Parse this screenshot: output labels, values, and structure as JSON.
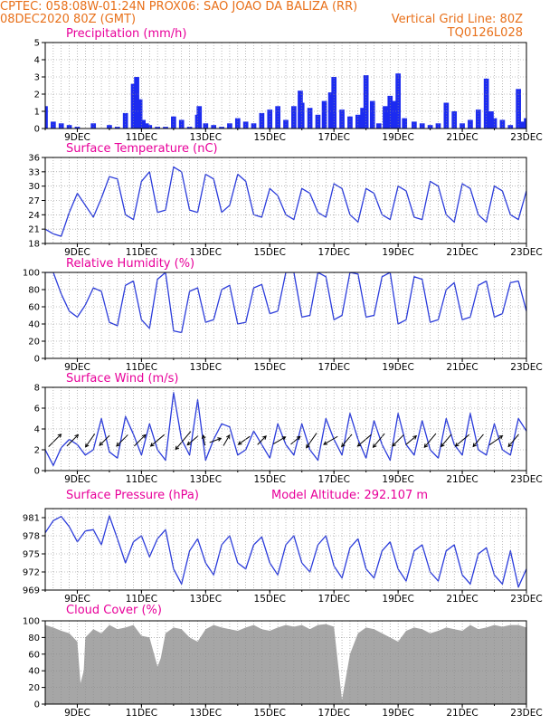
{
  "header": {
    "left_line1": "CPTEC:   058:08W-01:24N   PROX06: SAO JOAO DA BALIZA (RR)",
    "left_line2": "08DEC2020 80Z (GMT)",
    "right_line2": "Vertical Grid Line: 80Z",
    "right_line3": "TQ0126L028"
  },
  "colors": {
    "header_text": "#e8701a",
    "panel_title": "#e8009a",
    "series_line": "#2a3bdc",
    "precip_bar": "#1c2bf0",
    "cloud_fill": "#a6a6a6",
    "grid": "#8c8c8c"
  },
  "x_ticks": [
    "9DEC",
    "11DEC",
    "13DEC",
    "15DEC",
    "17DEC",
    "19DEC",
    "21DEC",
    "23DEC"
  ],
  "chart_data": [
    {
      "type": "bar",
      "title": "Precipitation (mm/h)",
      "x_range": [
        8.0,
        23.0
      ],
      "ylim": [
        0,
        5
      ],
      "y_ticks": [
        0,
        1,
        2,
        3,
        4,
        5
      ],
      "x": [
        8.0,
        8.25,
        8.5,
        8.75,
        9.0,
        9.5,
        10.0,
        10.25,
        10.5,
        10.75,
        10.85,
        10.95,
        11.05,
        11.15,
        11.25,
        11.5,
        11.75,
        12.0,
        12.25,
        12.5,
        12.75,
        12.8,
        13.0,
        13.25,
        13.5,
        13.75,
        14.0,
        14.25,
        14.5,
        14.75,
        15.0,
        15.25,
        15.5,
        15.75,
        15.95,
        16.0,
        16.25,
        16.5,
        16.7,
        16.9,
        17.0,
        17.25,
        17.5,
        17.75,
        17.9,
        18.0,
        18.2,
        18.4,
        18.6,
        18.75,
        18.9,
        19.0,
        19.2,
        19.5,
        19.75,
        20.0,
        20.25,
        20.5,
        20.75,
        21.0,
        21.25,
        21.5,
        21.75,
        21.9,
        22.0,
        22.25,
        22.5,
        22.75,
        22.9,
        23.0
      ],
      "values": [
        1.3,
        0.4,
        0.3,
        0.2,
        0.1,
        0.3,
        0.2,
        0.1,
        0.9,
        2.6,
        3.0,
        1.7,
        0.5,
        0.3,
        0.2,
        0.1,
        0.1,
        0.7,
        0.5,
        0.1,
        0.8,
        1.3,
        0.3,
        0.2,
        0.1,
        0.3,
        0.6,
        0.4,
        0.3,
        0.9,
        1.1,
        1.3,
        0.5,
        1.3,
        2.2,
        1.5,
        1.2,
        0.8,
        1.6,
        2.1,
        3.0,
        1.1,
        0.7,
        0.8,
        1.2,
        3.1,
        1.6,
        0.3,
        1.3,
        1.9,
        1.6,
        3.2,
        0.6,
        0.4,
        0.3,
        0.2,
        0.3,
        1.5,
        1.0,
        0.3,
        0.5,
        1.1,
        2.9,
        1.0,
        0.6,
        0.5,
        0.2,
        2.3,
        0.4,
        0.6
      ]
    },
    {
      "type": "line",
      "title": "Surface Temperature (nC)",
      "x_range": [
        8.0,
        23.0
      ],
      "ylim": [
        18,
        36
      ],
      "y_ticks": [
        18,
        21,
        24,
        27,
        30,
        33,
        36
      ],
      "x": [
        8.0,
        8.25,
        8.5,
        8.75,
        9.0,
        9.25,
        9.5,
        9.75,
        10.0,
        10.25,
        10.5,
        10.75,
        11.0,
        11.25,
        11.5,
        11.75,
        12.0,
        12.25,
        12.5,
        12.75,
        13.0,
        13.25,
        13.5,
        13.75,
        14.0,
        14.25,
        14.5,
        14.75,
        15.0,
        15.25,
        15.5,
        15.75,
        16.0,
        16.25,
        16.5,
        16.75,
        17.0,
        17.25,
        17.5,
        17.75,
        18.0,
        18.25,
        18.5,
        18.75,
        19.0,
        19.25,
        19.5,
        19.75,
        20.0,
        20.25,
        20.5,
        20.75,
        21.0,
        21.25,
        21.5,
        21.75,
        22.0,
        22.25,
        22.5,
        22.75,
        23.0
      ],
      "values": [
        21.0,
        20.0,
        19.5,
        24.5,
        28.5,
        26.0,
        23.5,
        27.5,
        32.0,
        31.5,
        24.0,
        23.0,
        31.0,
        33.0,
        24.5,
        25.0,
        34.0,
        33.0,
        25.0,
        24.5,
        32.5,
        31.5,
        24.5,
        26.0,
        32.5,
        31.0,
        24.0,
        23.5,
        29.5,
        28.0,
        24.0,
        23.0,
        29.5,
        28.5,
        24.5,
        23.5,
        30.5,
        29.5,
        24.0,
        22.5,
        29.5,
        28.5,
        24.0,
        23.0,
        30.0,
        29.0,
        23.5,
        23.0,
        31.0,
        30.0,
        24.0,
        22.5,
        30.5,
        29.5,
        24.0,
        22.5,
        30.0,
        29.0,
        24.0,
        23.0,
        29.0
      ]
    },
    {
      "type": "line",
      "title": "Relative Humidity (%)",
      "x_range": [
        8.0,
        23.0
      ],
      "ylim": [
        0,
        100
      ],
      "y_ticks": [
        0,
        20,
        40,
        60,
        80,
        100
      ],
      "x": [
        8.0,
        8.25,
        8.5,
        8.75,
        9.0,
        9.25,
        9.5,
        9.75,
        10.0,
        10.25,
        10.5,
        10.75,
        11.0,
        11.25,
        11.5,
        11.75,
        12.0,
        12.25,
        12.5,
        12.75,
        13.0,
        13.25,
        13.5,
        13.75,
        14.0,
        14.25,
        14.5,
        14.75,
        15.0,
        15.25,
        15.5,
        15.75,
        16.0,
        16.25,
        16.5,
        16.75,
        17.0,
        17.25,
        17.5,
        17.75,
        18.0,
        18.25,
        18.5,
        18.75,
        19.0,
        19.25,
        19.5,
        19.75,
        20.0,
        20.25,
        20.5,
        20.75,
        21.0,
        21.25,
        21.5,
        21.75,
        22.0,
        22.25,
        22.5,
        22.75,
        23.0
      ],
      "values": [
        100,
        100,
        75,
        55,
        48,
        62,
        82,
        78,
        42,
        38,
        85,
        90,
        45,
        35,
        92,
        100,
        32,
        30,
        78,
        82,
        42,
        45,
        80,
        85,
        40,
        42,
        82,
        86,
        52,
        55,
        100,
        100,
        48,
        50,
        100,
        95,
        45,
        50,
        100,
        98,
        48,
        50,
        95,
        100,
        40,
        45,
        95,
        92,
        42,
        45,
        80,
        88,
        45,
        48,
        85,
        90,
        48,
        52,
        88,
        90,
        55
      ]
    },
    {
      "type": "line",
      "title": "Surface Wind (m/s)",
      "x_range": [
        8.0,
        23.0
      ],
      "ylim": [
        0,
        8
      ],
      "y_ticks": [
        0,
        2,
        4,
        6,
        8
      ],
      "x": [
        8.0,
        8.25,
        8.5,
        8.75,
        9.0,
        9.25,
        9.5,
        9.75,
        10.0,
        10.25,
        10.5,
        10.75,
        11.0,
        11.25,
        11.5,
        11.75,
        12.0,
        12.25,
        12.5,
        12.75,
        13.0,
        13.25,
        13.5,
        13.75,
        14.0,
        14.25,
        14.5,
        14.75,
        15.0,
        15.25,
        15.5,
        15.75,
        16.0,
        16.25,
        16.5,
        16.75,
        17.0,
        17.25,
        17.5,
        17.75,
        18.0,
        18.25,
        18.5,
        18.75,
        19.0,
        19.25,
        19.5,
        19.75,
        20.0,
        20.25,
        20.5,
        20.75,
        21.0,
        21.25,
        21.5,
        21.75,
        22.0,
        22.25,
        22.5,
        22.75,
        23.0
      ],
      "values": [
        2.0,
        0.5,
        2.2,
        3.0,
        2.5,
        1.5,
        2.0,
        5.0,
        1.8,
        1.2,
        5.2,
        3.5,
        1.5,
        4.5,
        2.0,
        1.0,
        7.5,
        3.0,
        1.5,
        6.8,
        1.0,
        3.0,
        4.5,
        4.2,
        1.5,
        2.0,
        3.8,
        2.5,
        1.2,
        4.5,
        2.5,
        1.5,
        4.5,
        2.0,
        1.0,
        5.0,
        3.0,
        1.5,
        5.5,
        3.0,
        1.2,
        4.8,
        2.5,
        1.0,
        5.5,
        2.5,
        1.5,
        4.8,
        2.0,
        1.2,
        5.0,
        2.5,
        1.5,
        5.5,
        2.0,
        1.5,
        4.5,
        2.0,
        1.5,
        5.0,
        3.8
      ]
    },
    {
      "type": "line",
      "title": "Surface Pressure (hPa)",
      "subtitle": "Model Altitude: 292.107  m",
      "x_range": [
        8.0,
        23.0
      ],
      "ylim": [
        969,
        982.5
      ],
      "y_ticks": [
        969,
        972,
        975,
        978,
        981
      ],
      "x": [
        8.0,
        8.25,
        8.5,
        8.75,
        9.0,
        9.25,
        9.5,
        9.75,
        10.0,
        10.25,
        10.5,
        10.75,
        11.0,
        11.25,
        11.5,
        11.75,
        12.0,
        12.25,
        12.5,
        12.75,
        13.0,
        13.25,
        13.5,
        13.75,
        14.0,
        14.25,
        14.5,
        14.75,
        15.0,
        15.25,
        15.5,
        15.75,
        16.0,
        16.25,
        16.5,
        16.75,
        17.0,
        17.25,
        17.5,
        17.75,
        18.0,
        18.25,
        18.5,
        18.75,
        19.0,
        19.25,
        19.5,
        19.75,
        20.0,
        20.25,
        20.5,
        20.75,
        21.0,
        21.25,
        21.5,
        21.75,
        22.0,
        22.25,
        22.5,
        22.75,
        23.0
      ],
      "values": [
        978.5,
        980.5,
        981.2,
        979.5,
        977.0,
        978.8,
        979.0,
        976.5,
        981.3,
        977.5,
        973.5,
        977.0,
        978.0,
        974.5,
        977.5,
        979.0,
        972.5,
        970.0,
        975.5,
        977.5,
        973.5,
        971.5,
        976.5,
        978.0,
        973.5,
        972.5,
        976.5,
        977.8,
        973.5,
        971.5,
        976.5,
        978.0,
        973.5,
        972.0,
        976.5,
        978.0,
        973.0,
        971.0,
        976.0,
        977.5,
        972.5,
        971.0,
        975.5,
        977.0,
        972.5,
        970.5,
        975.5,
        976.5,
        972.0,
        970.5,
        975.5,
        976.5,
        971.5,
        970.0,
        975.0,
        976.0,
        971.5,
        970.0,
        975.5,
        969.5,
        972.5
      ]
    },
    {
      "type": "area",
      "title": "Cloud Cover (%)",
      "x_range": [
        8.0,
        23.0
      ],
      "ylim": [
        0,
        100
      ],
      "y_ticks": [
        0,
        20,
        40,
        60,
        80,
        100
      ],
      "x": [
        8.0,
        8.25,
        8.5,
        8.75,
        9.0,
        9.1,
        9.2,
        9.25,
        9.5,
        9.75,
        10.0,
        10.25,
        10.5,
        10.75,
        11.0,
        11.25,
        11.5,
        11.6,
        11.75,
        12.0,
        12.25,
        12.5,
        12.75,
        13.0,
        13.25,
        13.5,
        13.75,
        14.0,
        14.25,
        14.5,
        14.75,
        15.0,
        15.25,
        15.5,
        15.75,
        16.0,
        16.25,
        16.5,
        16.75,
        17.0,
        17.25,
        17.5,
        17.75,
        18.0,
        18.25,
        18.5,
        18.75,
        19.0,
        19.25,
        19.5,
        19.75,
        20.0,
        20.25,
        20.5,
        20.75,
        21.0,
        21.25,
        21.5,
        21.75,
        22.0,
        22.25,
        22.5,
        22.75,
        23.0
      ],
      "values": [
        95,
        92,
        88,
        85,
        75,
        25,
        40,
        80,
        90,
        85,
        95,
        90,
        92,
        95,
        82,
        80,
        45,
        55,
        85,
        92,
        90,
        80,
        75,
        90,
        95,
        92,
        90,
        88,
        92,
        95,
        90,
        88,
        92,
        95,
        93,
        95,
        90,
        95,
        96,
        93,
        5,
        60,
        85,
        92,
        90,
        85,
        80,
        75,
        88,
        92,
        90,
        85,
        88,
        92,
        90,
        88,
        95,
        90,
        92,
        95,
        93,
        95,
        95,
        92
      ]
    }
  ],
  "wind_arrows": {
    "x": [
      8.3,
      8.85,
      9.4,
      9.85,
      10.4,
      10.95,
      11.5,
      12.3,
      12.6,
      12.95,
      13.3,
      13.65,
      14.2,
      14.75,
      15.3,
      15.8,
      16.3,
      16.9,
      17.4,
      17.95,
      18.4,
      19.0,
      19.4,
      20.0,
      20.5,
      21.0,
      21.5,
      22.05,
      22.6
    ],
    "dir_deg": [
      45,
      45,
      235,
      225,
      225,
      45,
      220,
      230,
      220,
      100,
      20,
      60,
      215,
      45,
      30,
      40,
      235,
      210,
      230,
      220,
      230,
      225,
      40,
      230,
      230,
      220,
      230,
      35,
      230
    ],
    "speed_ms": [
      3.5,
      3.0,
      3.0,
      2.5,
      3.0,
      3.0,
      3.5,
      5.0,
      2.5,
      1.5,
      2.0,
      2.0,
      2.5,
      2.0,
      2.5,
      2.0,
      3.5,
      3.0,
      3.0,
      3.5,
      3.5,
      3.0,
      2.5,
      3.5,
      3.0,
      3.5,
      3.0,
      3.0,
      3.0
    ]
  }
}
